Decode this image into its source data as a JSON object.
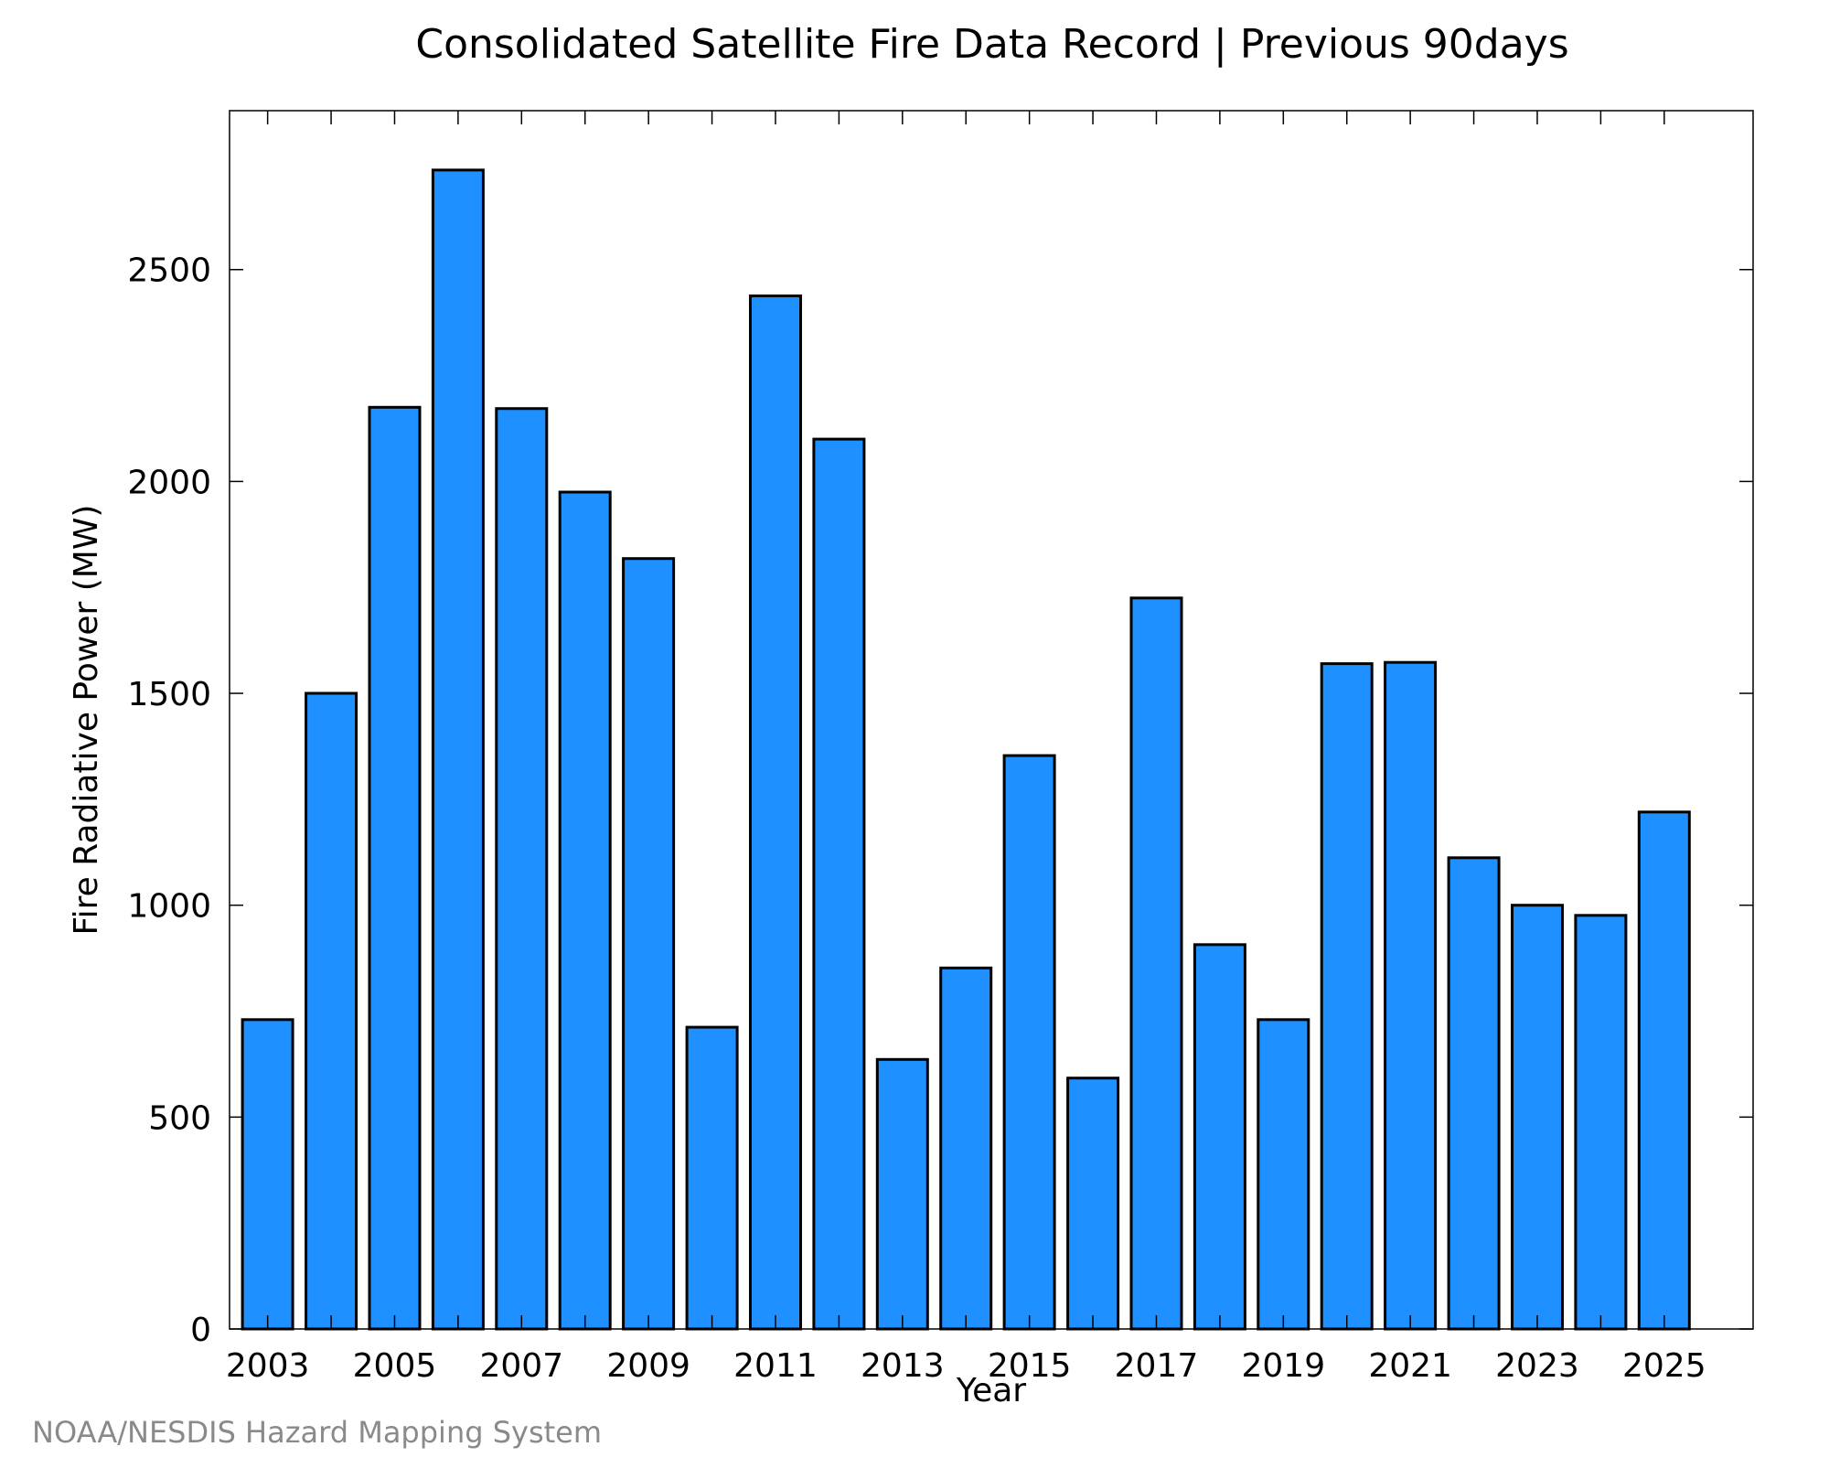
{
  "chart_data": {
    "type": "bar",
    "title": "Consolidated Satellite Fire Data Record | Previous 90days",
    "xlabel": "Year",
    "ylabel": "Fire Radiative Power (MW)",
    "categories": [
      2003,
      2004,
      2005,
      2006,
      2007,
      2008,
      2009,
      2010,
      2011,
      2012,
      2013,
      2014,
      2015,
      2016,
      2017,
      2018,
      2019,
      2020,
      2021,
      2022,
      2023,
      2024,
      2025
    ],
    "values": [
      730,
      1500,
      2175,
      2735,
      2172,
      1975,
      1818,
      712,
      2438,
      2100,
      636,
      852,
      1353,
      592,
      1725,
      907,
      730,
      1570,
      1573,
      1112,
      1000,
      976,
      1220
    ],
    "x_tick_labels": [
      "2003",
      "2005",
      "2007",
      "2009",
      "2011",
      "2013",
      "2015",
      "2017",
      "2019",
      "2021",
      "2023",
      "2025"
    ],
    "y_tick_labels": [
      "0",
      "500",
      "1000",
      "1500",
      "2000",
      "2500"
    ],
    "y_ticks": [
      0,
      500,
      1000,
      1500,
      2000,
      2500
    ],
    "ylim": [
      0,
      2875
    ],
    "xlim": [
      2002.4,
      2026.4
    ],
    "bar_color": "#1e90ff",
    "grid": false,
    "legend": "none"
  },
  "credit": "NOAA/NESDIS Hazard Mapping System"
}
